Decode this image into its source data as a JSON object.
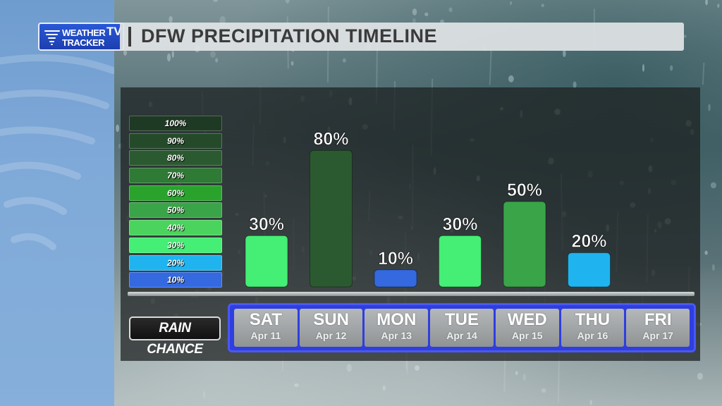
{
  "header": {
    "title": "DFW PRECIPITATION TIMELINE",
    "logo_line1": "WEATHER",
    "logo_line2": "TRACKER",
    "logo_tv": "TV"
  },
  "legend": {
    "items": [
      {
        "label": "100%",
        "color": "#1f3a24"
      },
      {
        "label": "90%",
        "color": "#244a2a"
      },
      {
        "label": "80%",
        "color": "#2b5a30"
      },
      {
        "label": "70%",
        "color": "#2f7a35"
      },
      {
        "label": "60%",
        "color": "#2aa32d"
      },
      {
        "label": "50%",
        "color": "#3aa448"
      },
      {
        "label": "40%",
        "color": "#4ad45d"
      },
      {
        "label": "30%",
        "color": "#45ee74"
      },
      {
        "label": "20%",
        "color": "#1fb4ef"
      },
      {
        "label": "10%",
        "color": "#3469e0"
      }
    ]
  },
  "rain_label": "RAIN CHANCE",
  "days": [
    {
      "dow": "SAT",
      "date": "Apr 11"
    },
    {
      "dow": "SUN",
      "date": "Apr 12"
    },
    {
      "dow": "MON",
      "date": "Apr 13"
    },
    {
      "dow": "TUE",
      "date": "Apr 14"
    },
    {
      "dow": "WED",
      "date": "Apr 15"
    },
    {
      "dow": "THU",
      "date": "Apr 16"
    },
    {
      "dow": "FRI",
      "date": "Apr 17"
    }
  ],
  "chart_data": {
    "type": "bar",
    "title": "DFW PRECIPITATION TIMELINE",
    "categories": [
      "SAT",
      "SUN",
      "MON",
      "TUE",
      "WED",
      "THU",
      "FRI"
    ],
    "values": [
      30,
      80,
      10,
      30,
      50,
      20,
      null
    ],
    "value_labels": [
      "30%",
      "80%",
      "10%",
      "30%",
      "50%",
      "20%",
      ""
    ],
    "bar_colors": [
      "#45ee74",
      "#2b5a30",
      "#3469e0",
      "#45ee74",
      "#3aa448",
      "#1fb4ef",
      ""
    ],
    "ylim": [
      0,
      100
    ],
    "unit": "%",
    "ylabel": "",
    "xlabel": "RAIN CHANCE",
    "grid": false
  }
}
